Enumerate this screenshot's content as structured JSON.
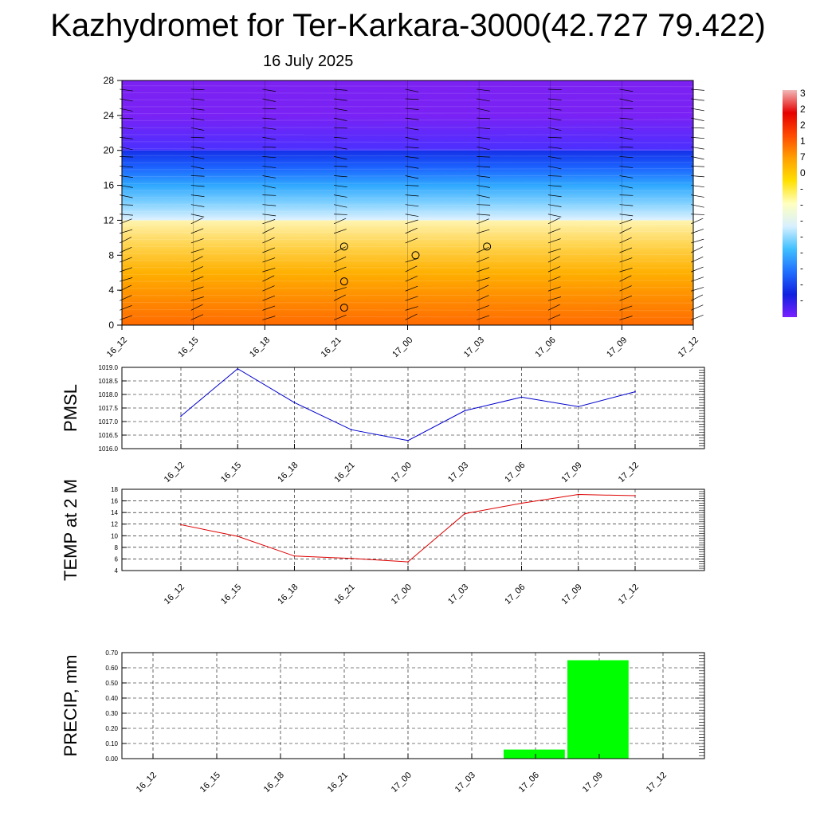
{
  "header": {
    "title": "Kazhydromet for Ter-Karkara-3000(42.727 79.422)",
    "date": "16 July 2025"
  },
  "colorbar": {
    "labels": [
      "3",
      "2",
      "2",
      "1",
      "7",
      "0",
      "-",
      "-",
      "-",
      "-",
      "-",
      "-",
      "-",
      "-"
    ],
    "colors": [
      "#f2b8b8",
      "#e60000",
      "#ff4a00",
      "#ffa000",
      "#ffe000",
      "#ffffc0",
      "#d8f0ff",
      "#40c0ff",
      "#1e70ff",
      "#1020e0",
      "#7a20ff"
    ]
  },
  "chart_data": [
    {
      "type": "heatmap",
      "name": "vertical-section",
      "x_labels": [
        "16_12",
        "16_15",
        "16_18",
        "16_21",
        "17_00",
        "17_03",
        "17_06",
        "17_09",
        "17_12"
      ],
      "y_ticks": [
        0,
        4,
        8,
        12,
        16,
        20,
        24,
        28
      ],
      "ylim": [
        0,
        28
      ],
      "note_bands": [
        {
          "from": 0,
          "to": 12,
          "colors": [
            "#ff6a00",
            "#ff8c00",
            "#ffb000",
            "#ffd24a",
            "#fff4b0"
          ]
        },
        {
          "from": 12,
          "to": 20,
          "colors": [
            "#dff2ff",
            "#7fd0ff",
            "#30a8ff",
            "#1c64ff",
            "#1430e8"
          ]
        },
        {
          "from": 20,
          "to": 28,
          "colors": [
            "#4a30ff",
            "#7a22f5",
            "#7b21f2"
          ]
        }
      ],
      "calm_markers": [
        {
          "x": "16_21",
          "y": 9
        },
        {
          "x": "16_21",
          "y": 5
        },
        {
          "x": "16_21",
          "y": 2
        },
        {
          "x": "17_00",
          "y": 8
        },
        {
          "x": "17_03",
          "y": 9
        }
      ]
    },
    {
      "type": "line",
      "name": "pmsl",
      "ylabel": "PMSL",
      "categories": [
        "16_12",
        "16_15",
        "16_18",
        "16_21",
        "17_00",
        "17_03",
        "17_06",
        "17_09",
        "17_12"
      ],
      "values": [
        1017.2,
        1018.95,
        1017.7,
        1016.7,
        1016.3,
        1017.4,
        1017.9,
        1017.55,
        1018.1
      ],
      "ylim": [
        1016.0,
        1019.0
      ],
      "y_ticks": [
        "1016.0",
        "1016.5",
        "1017.0",
        "1017.5",
        "1018.0",
        "1018.5",
        "1019.0"
      ],
      "color": "#0000cc",
      "grid": true
    },
    {
      "type": "line",
      "name": "temp2m",
      "ylabel": "TEMP at 2 M",
      "categories": [
        "16_12",
        "16_15",
        "16_18",
        "16_21",
        "17_00",
        "17_03",
        "17_06",
        "17_09",
        "17_12"
      ],
      "values": [
        11.9,
        9.9,
        6.5,
        6.1,
        5.5,
        13.8,
        15.6,
        17.1,
        16.9
      ],
      "ylim": [
        4,
        18
      ],
      "y_ticks": [
        "4",
        "6",
        "8",
        "10",
        "12",
        "14",
        "16",
        "18"
      ],
      "color": "#dd0000",
      "grid": true
    },
    {
      "type": "bar",
      "name": "precip",
      "ylabel": "PRECIP, mm",
      "categories": [
        "16_12",
        "16_15",
        "16_18",
        "16_21",
        "17_00",
        "17_03",
        "17_06",
        "17_09",
        "17_12"
      ],
      "values": [
        0,
        0,
        0,
        0,
        0,
        0,
        0.06,
        0.65,
        0
      ],
      "ylim": [
        0,
        0.7
      ],
      "y_ticks": [
        "0.00",
        "0.10",
        "0.20",
        "0.30",
        "0.40",
        "0.50",
        "0.60",
        "0.70"
      ],
      "color": "#00ff00",
      "grid": true
    }
  ]
}
